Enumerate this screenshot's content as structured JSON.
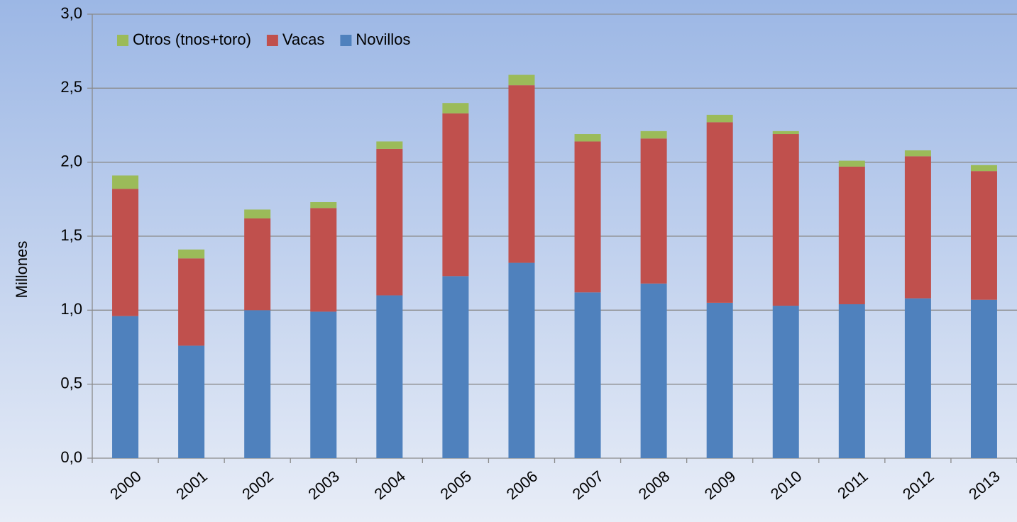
{
  "chart_data": {
    "type": "stacked_bar",
    "ylabel": "Millones",
    "categories": [
      "2000",
      "2001",
      "2002",
      "2003",
      "2004",
      "2005",
      "2006",
      "2007",
      "2008",
      "2009",
      "2010",
      "2011",
      "2012",
      "2013"
    ],
    "series": [
      {
        "name": "Novillos",
        "color": "#4f81bd",
        "values": [
          0.96,
          0.76,
          1.0,
          0.99,
          1.1,
          1.23,
          1.32,
          1.12,
          1.18,
          1.05,
          1.03,
          1.04,
          1.08,
          1.07
        ]
      },
      {
        "name": "Vacas",
        "color": "#c0504d",
        "values": [
          0.86,
          0.59,
          0.62,
          0.7,
          0.99,
          1.1,
          1.2,
          1.02,
          0.98,
          1.22,
          1.16,
          0.93,
          0.96,
          0.87
        ]
      },
      {
        "name": "Otros (tnos+toro)",
        "color": "#9bbb59",
        "values": [
          0.09,
          0.06,
          0.06,
          0.04,
          0.05,
          0.07,
          0.07,
          0.05,
          0.05,
          0.05,
          0.02,
          0.04,
          0.04,
          0.04
        ]
      }
    ],
    "ylim": [
      0,
      3
    ],
    "yticks": [
      {
        "value": 0,
        "label": "0,0"
      },
      {
        "value": 0.5,
        "label": "0,5"
      },
      {
        "value": 1,
        "label": "1,0"
      },
      {
        "value": 1.5,
        "label": "1,5"
      },
      {
        "value": 2,
        "label": "2,0"
      },
      {
        "value": 2.5,
        "label": "2,5"
      },
      {
        "value": 3,
        "label": "3,0"
      }
    ],
    "grid": true,
    "legend": "top-left"
  }
}
